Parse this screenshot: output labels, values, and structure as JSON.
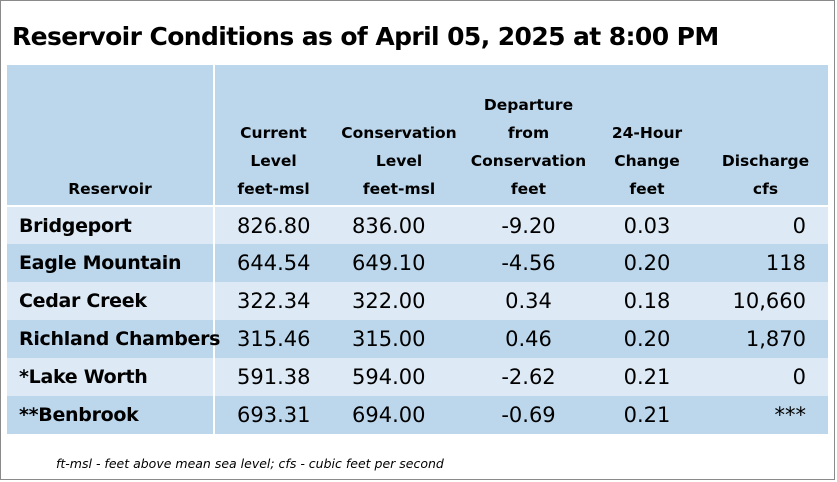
{
  "title": "Reservoir Conditions as of April 05, 2025 at 8:00 PM",
  "headers": [
    {
      "lines": [
        "Reservoir"
      ]
    },
    {
      "lines": [
        "Current",
        "Level",
        "feet-msl"
      ]
    },
    {
      "lines": [
        "Conservation",
        "Level",
        "feet-msl"
      ]
    },
    {
      "lines": [
        "Departure",
        "from",
        "Conservation",
        "feet"
      ]
    },
    {
      "lines": [
        "24-Hour",
        "Change",
        "feet"
      ]
    },
    {
      "lines": [
        "Discharge",
        "cfs"
      ]
    }
  ],
  "rows": [
    {
      "name": "Bridgeport",
      "current": "826.80",
      "conservation": "836.00",
      "departure": "-9.20",
      "change": "0.03",
      "discharge": "0"
    },
    {
      "name": "Eagle Mountain",
      "current": "644.54",
      "conservation": "649.10",
      "departure": "-4.56",
      "change": "0.20",
      "discharge": "118"
    },
    {
      "name": "Cedar Creek",
      "current": "322.34",
      "conservation": "322.00",
      "departure": "0.34",
      "change": "0.18",
      "discharge": "10,660"
    },
    {
      "name": "Richland Chambers",
      "current": "315.46",
      "conservation": "315.00",
      "departure": "0.46",
      "change": "0.20",
      "discharge": "1,870"
    },
    {
      "name": "*Lake Worth",
      "current": "591.38",
      "conservation": "594.00",
      "departure": "-2.62",
      "change": "0.21",
      "discharge": "0"
    },
    {
      "name": "**Benbrook",
      "current": "693.31",
      "conservation": "694.00",
      "departure": "-0.69",
      "change": "0.21",
      "discharge": "***"
    }
  ],
  "footnote": "ft-msl - feet above mean sea level; cfs - cubic feet per second",
  "colors": {
    "header_bg": "#bcd7ec",
    "row_light": "#ddeaf5",
    "row_dark": "#bcd7ec",
    "separator": "#ffffff"
  }
}
